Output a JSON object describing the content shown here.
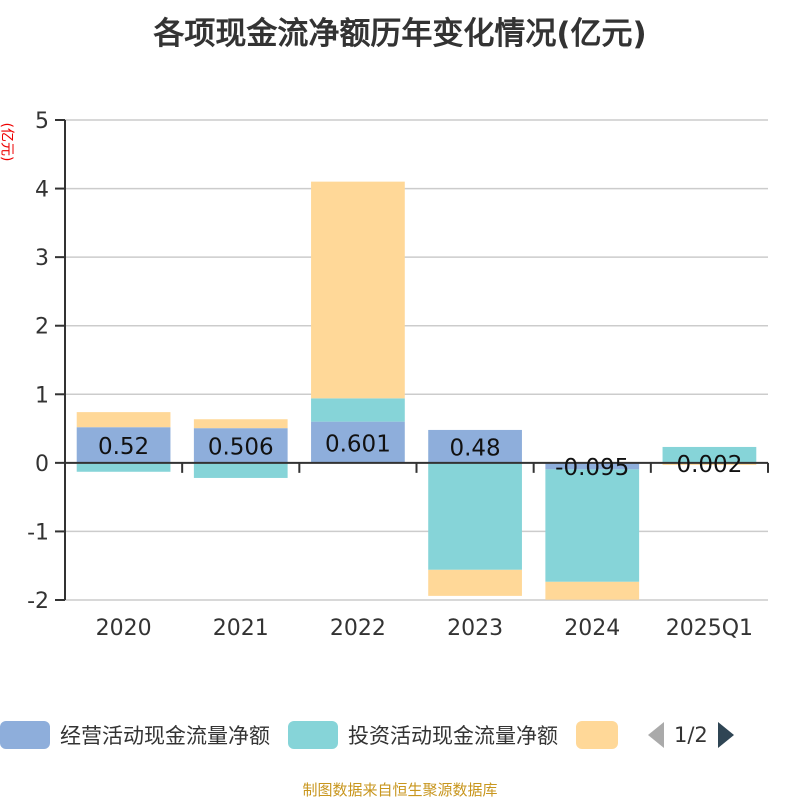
{
  "chart_data": {
    "type": "bar",
    "stacked": true,
    "title": "各项现金流净额历年变化情况(亿元)",
    "ylabel": "(亿元)",
    "categories": [
      "2020",
      "2021",
      "2022",
      "2023",
      "2024",
      "2025Q1"
    ],
    "ylim": [
      -2,
      5
    ],
    "yticks": [
      5,
      4,
      3,
      2,
      1,
      0,
      -1,
      -2
    ],
    "grid": true,
    "legend_position": "bottom",
    "series": [
      {
        "name": "经营活动现金流量净额",
        "color": "#8eaedb",
        "values": [
          0.52,
          0.506,
          0.601,
          0.48,
          -0.095,
          0.002
        ],
        "labels": [
          "0.52",
          "0.506",
          "0.601",
          "0.48",
          "-0.095",
          "0.002"
        ]
      },
      {
        "name": "投资活动现金流量净额",
        "color": "#86d4d8",
        "values": [
          -0.13,
          -0.22,
          0.34,
          -1.56,
          -1.64,
          0.23
        ]
      },
      {
        "name": "",
        "color": "#ffd898",
        "values": [
          0.22,
          0.13,
          3.16,
          -0.38,
          -0.26,
          -0.03
        ]
      }
    ]
  },
  "legend": {
    "page": "1/2"
  },
  "source": "制图数据来自恒生聚源数据库"
}
